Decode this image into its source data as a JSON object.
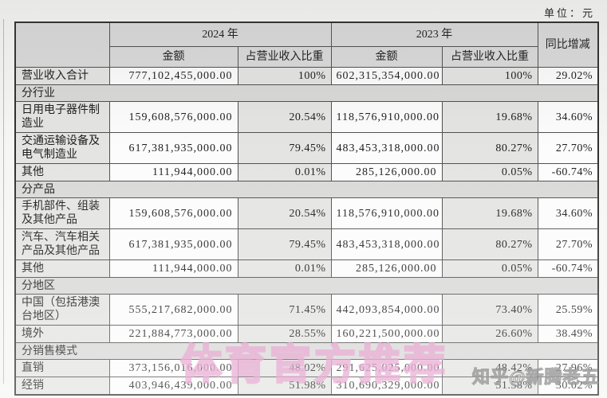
{
  "page": {
    "unit_label": "单位：元"
  },
  "table": {
    "col_headers": {
      "year_2024": "2024 年",
      "year_2023": "2023 年",
      "amount": "金额",
      "pct_of_revenue": "占营业收入比重",
      "yoy_change": "同比增减"
    },
    "rows": [
      {
        "type": "data",
        "label": "营业收入合计",
        "amount_2024": "777,102,455,000.00",
        "pct_2024": "100%",
        "amount_2023": "602,315,354,000.00",
        "pct_2023": "100%",
        "yoy": "29.02%"
      },
      {
        "type": "section",
        "label": "分行业"
      },
      {
        "type": "data",
        "label": "日用电子器件制造业",
        "amount_2024": "159,608,576,000.00",
        "pct_2024": "20.54%",
        "amount_2023": "118,576,910,000.00",
        "pct_2023": "19.68%",
        "yoy": "34.60%"
      },
      {
        "type": "data",
        "label": "交通运输设备及电气制造业",
        "amount_2024": "617,381,935,000.00",
        "pct_2024": "79.45%",
        "amount_2023": "483,453,318,000.00",
        "pct_2023": "80.27%",
        "yoy": "27.70%"
      },
      {
        "type": "data",
        "label": "其他",
        "amount_2024": "111,944,000.00",
        "pct_2024": "0.01%",
        "amount_2023": "285,126,000.00",
        "pct_2023": "0.05%",
        "yoy": "-60.74%"
      },
      {
        "type": "section",
        "label": "分产品"
      },
      {
        "type": "data",
        "label": "手机部件、组装及其他产品",
        "amount_2024": "159,608,576,000.00",
        "pct_2024": "20.54%",
        "amount_2023": "118,576,910,000.00",
        "pct_2023": "19.68%",
        "yoy": "34.60%"
      },
      {
        "type": "data",
        "label": "汽车、汽车相关产品及其他产品",
        "amount_2024": "617,381,935,000.00",
        "pct_2024": "79.45%",
        "amount_2023": "483,453,318,000.00",
        "pct_2023": "80.27%",
        "yoy": "27.70%"
      },
      {
        "type": "data",
        "label": "其他",
        "amount_2024": "111,944,000.00",
        "pct_2024": "0.01%",
        "amount_2023": "285,126,000.00",
        "pct_2023": "0.05%",
        "yoy": "-60.74%"
      },
      {
        "type": "section",
        "label": "分地区"
      },
      {
        "type": "data",
        "label": "中国（包括港澳台地区）",
        "amount_2024": "555,217,682,000.00",
        "pct_2024": "71.45%",
        "amount_2023": "442,093,854,000.00",
        "pct_2023": "73.40%",
        "yoy": "25.59%"
      },
      {
        "type": "data",
        "label": "境外",
        "amount_2024": "221,884,773,000.00",
        "pct_2024": "28.55%",
        "amount_2023": "160,221,500,000.00",
        "pct_2023": "26.60%",
        "yoy": "38.49%"
      },
      {
        "type": "section",
        "label": "分销售模式"
      },
      {
        "type": "data",
        "label": "直销",
        "amount_2024": "373,156,016,000.00",
        "pct_2024": "48.02%",
        "amount_2023": "291,625,025,000.00",
        "pct_2023": "48.42%",
        "yoy": "27.96%"
      },
      {
        "type": "data",
        "label": "经销",
        "amount_2024": "403,946,439,000.00",
        "pct_2024": "51.98%",
        "amount_2023": "310,690,329,000.00",
        "pct_2023": "51.58%",
        "yoy": "30.02%"
      }
    ]
  },
  "watermarks": {
    "pink_text": "体育官方推荐",
    "zhihu_text": "知乎@新腾老五"
  },
  "colors": {
    "watermark_pink": "#e294c6",
    "header_band_gray": "#dadada",
    "shaded_cell_gray": "#e4e4e2",
    "table_border": "#4f4f4f"
  }
}
